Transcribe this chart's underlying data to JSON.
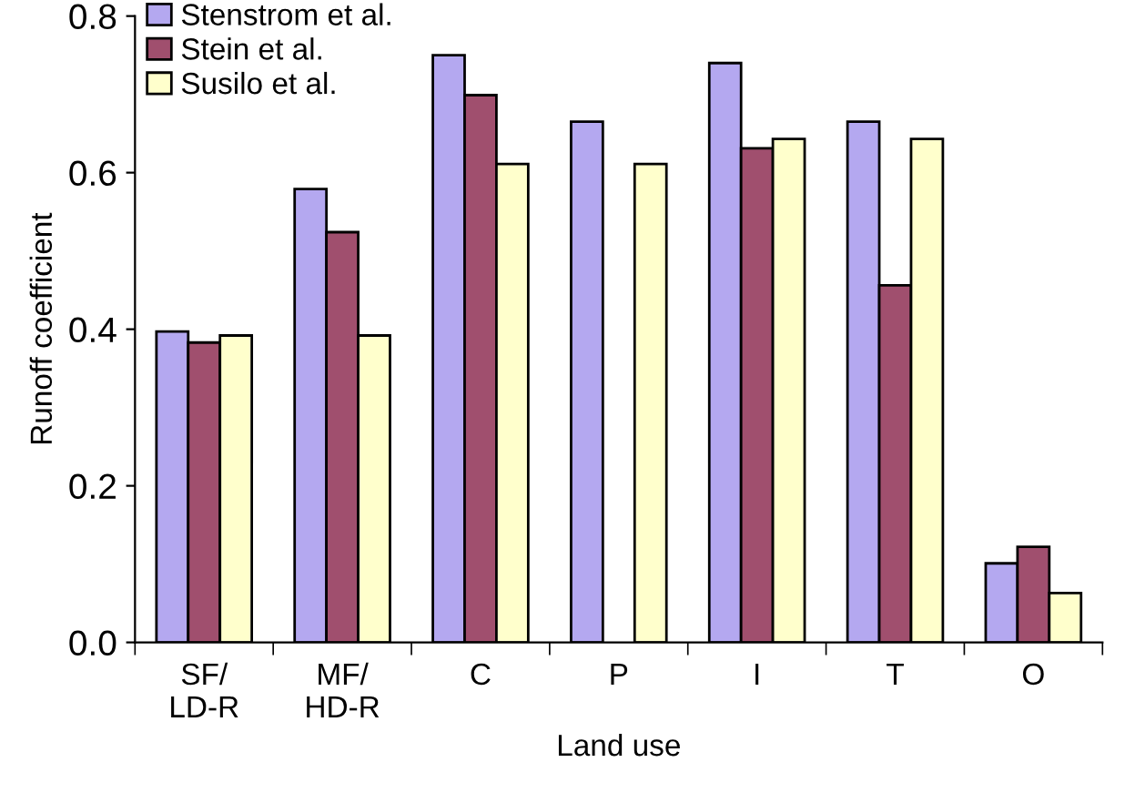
{
  "chart_data": {
    "type": "bar",
    "xlabel": "Land use",
    "ylabel": "Runoff coefficient",
    "categories": [
      "SF/\nLD-R",
      "MF/\nHD-R",
      "C",
      "P",
      "I",
      "T",
      "O"
    ],
    "series": [
      {
        "name": "Stenstrom et al.",
        "color": "#b4a8f0",
        "values": [
          0.397,
          0.579,
          0.75,
          0.665,
          0.74,
          0.665,
          0.101
        ]
      },
      {
        "name": "Stein et al.",
        "color": "#a04f6e",
        "values": [
          0.383,
          0.524,
          0.699,
          null,
          0.631,
          0.456,
          0.122
        ]
      },
      {
        "name": "Susilo et al.",
        "color": "#ffffcc",
        "values": [
          0.392,
          0.392,
          0.611,
          0.611,
          0.643,
          0.643,
          0.063
        ]
      }
    ],
    "ylim": [
      0,
      0.8
    ],
    "yticks": [
      {
        "value": 0,
        "label": "0.0"
      },
      0.2,
      0.4,
      0.6,
      0.8
    ],
    "legend": "top left",
    "grid": false
  }
}
